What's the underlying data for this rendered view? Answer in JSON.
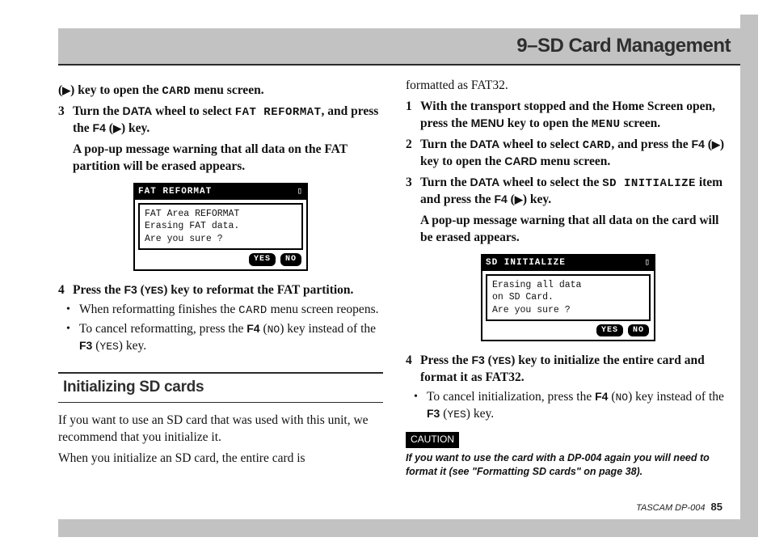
{
  "header": {
    "title": "9–SD Card Management"
  },
  "left": {
    "cont": {
      "pre": "(",
      "play": "▶",
      "post": ") key to open the ",
      "card": "CARD",
      "post2": " menu screen."
    },
    "s3": {
      "n": "3",
      "a": "Turn the ",
      "data": "DATA",
      "b": " wheel to select ",
      "fat": "FAT REFORMAT",
      "c": ", and press the ",
      "f4": "F4",
      "d": " (",
      "play": "▶",
      "e": ") key."
    },
    "warn": "A pop-up message warning that all data on the FAT partition will be erased appears.",
    "screen1": {
      "title": "FAT REFORMAT",
      "batt": "▯",
      "l1": "FAT Area REFORMAT",
      "l2": "Erasing FAT data.",
      "l3": "Are you sure ?",
      "yes": "YES",
      "no": "NO"
    },
    "s4": {
      "n": "4",
      "a": "Press the ",
      "f3": "F3",
      "b": " (",
      "yes": "YES",
      "c": ") key to reformat the FAT partition."
    },
    "b1": {
      "a": "When reformatting finishes the ",
      "card": "CARD",
      "b": " menu screen reopens."
    },
    "b2": {
      "a": "To cancel reformatting, press the ",
      "f4": "F4",
      "b": " (",
      "no": "NO",
      "c": ") key instead of the ",
      "f3": "F3",
      "d": " (",
      "yes": "YES",
      "e": ") key."
    },
    "sec": "Initializing SD cards",
    "p1": "If you want to use an SD card that was used with this unit, we recommend that you initialize it.",
    "p2": "When you initialize an SD card, the entire card is"
  },
  "right": {
    "p0": "formatted as FAT32.",
    "s1": {
      "n": "1",
      "a": "With the transport stopped and the Home Screen open, press the ",
      "menu": "MENU",
      "b": " key to open the ",
      "menulcd": "MENU",
      "c": " screen."
    },
    "s2": {
      "n": "2",
      "a": "Turn the ",
      "data": "DATA",
      "b": " wheel to select ",
      "card": "CARD",
      "c": ", and press the ",
      "f4": "F4",
      "d": " (",
      "play": "▶",
      "e": ") key to open the ",
      "cardB": "CARD",
      "f": " menu screen."
    },
    "s3": {
      "n": "3",
      "a": "Turn the ",
      "data": "DATA",
      "b": " wheel to select the ",
      "sd": "SD INITIALIZE",
      "c": " item and press the ",
      "f4": "F4",
      "d": " (",
      "play": "▶",
      "e": ") key."
    },
    "warn": "A pop-up message warning that all data on the card will be erased appears.",
    "screen2": {
      "title": "SD INITIALIZE",
      "batt": "▯",
      "l1": "Erasing all data",
      "l2": " on SD Card.",
      "l3": "Are you sure ?",
      "yes": "YES",
      "no": "NO"
    },
    "s4": {
      "n": "4",
      "a": "Press the ",
      "f3": "F3",
      "b": " (",
      "yes": "YES",
      "c": ") key to initialize the entire card and format it as FAT32."
    },
    "b1": {
      "a": "To cancel initialization, press the ",
      "f4": "F4",
      "b": " (",
      "no": "NO",
      "c": ") key instead of the ",
      "f3": "F3",
      "d": " (",
      "yes": "YES",
      "e": ") key."
    },
    "caution_lbl": "CAUTION",
    "caution": "If you want to use the card with a DP-004 again you will need to format it (see \"Formatting SD cards\" on page 38)."
  },
  "footer": {
    "brand": "TASCAM  DP-004",
    "page": "85"
  }
}
